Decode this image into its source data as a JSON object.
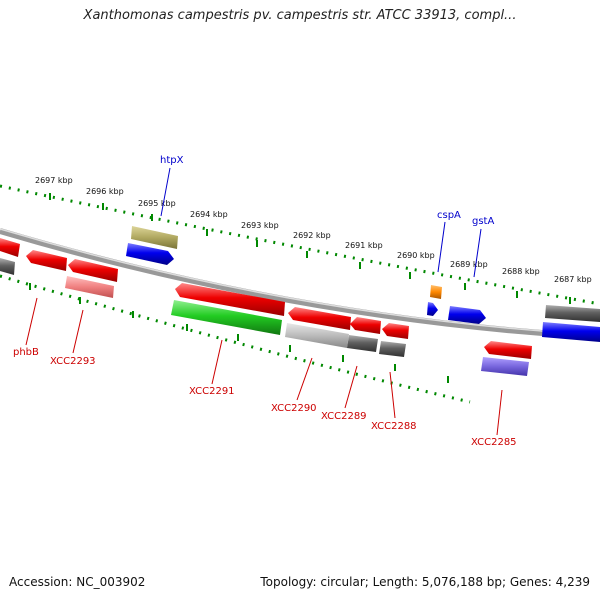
{
  "title": "Xanthomonas campestris pv. campestris str. ATCC 33913, compl...",
  "footer": {
    "accession": "Accession: NC_003902",
    "summary": "Topology: circular; Length: 5,076,188 bp; Genes: 4,239"
  },
  "kbp_labels": [
    "2697 kbp",
    "2696 kbp",
    "2695 kbp",
    "2694 kbp",
    "2693 kbp",
    "2692 kbp",
    "2691 kbp",
    "2690 kbp",
    "2689 kbp",
    "2688 kbp",
    "2687 kbp"
  ],
  "genes": {
    "htpX": "htpX",
    "cspA": "cspA",
    "gstA": "gstA",
    "phbB": "phbB",
    "xcc2293": "XCC2293",
    "xcc2291": "XCC2291",
    "xcc2290": "XCC2290",
    "xcc2289": "XCC2289",
    "xcc2288": "XCC2288",
    "xcc2285": "XCC2285"
  },
  "colors": {
    "forward_gene": "#ee0000",
    "reverse_gene": "#0000ee",
    "backbone": "#808080",
    "ticks": "#007700",
    "label_red": "#cc0000",
    "label_blue": "#0000cc"
  }
}
